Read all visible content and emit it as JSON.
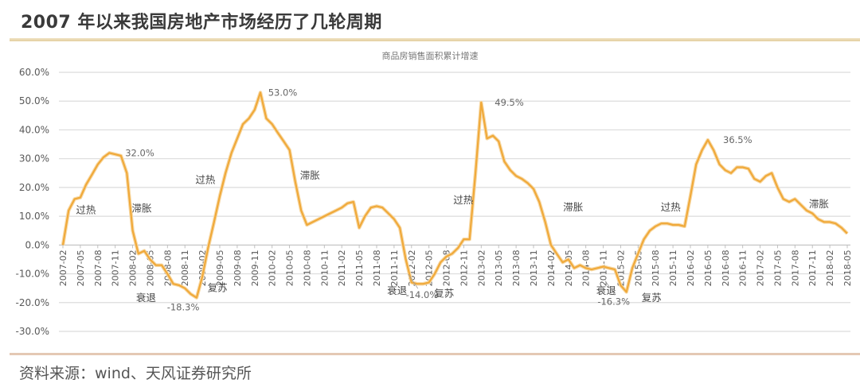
{
  "header": {
    "title": "2007 年以来我国房地产市场经历了几轮周期"
  },
  "footer": {
    "source": "资料来源：wind、天风证券研究所"
  },
  "colors": {
    "line": "#f0a93a",
    "grid": "#dcdcdc",
    "text": "#595959",
    "axis": "#bfbfbf"
  },
  "chart_data": {
    "type": "line",
    "title": "商品房销售面积累计增速",
    "xlabel": "",
    "ylabel": "",
    "ylim": [
      -30,
      60
    ],
    "yticks": [
      60,
      50,
      40,
      30,
      20,
      10,
      0,
      -10,
      -20,
      -30
    ],
    "ytick_labels": [
      "60.0%",
      "50.0%",
      "40.0%",
      "30.0%",
      "20.0%",
      "10.0%",
      "0.0%",
      "-10.0%",
      "-20.0%",
      "-30.0%"
    ],
    "grid": true,
    "legend": "none",
    "categories": [
      "2007-02",
      "2007-05",
      "2007-08",
      "2007-11",
      "2008-02",
      "2008-05",
      "2008-08",
      "2008-11",
      "2009-02",
      "2009-05",
      "2009-08",
      "2009-11",
      "2010-02",
      "2010-05",
      "2010-08",
      "2010-11",
      "2011-02",
      "2011-05",
      "2011-08",
      "2011-11",
      "2012-02",
      "2012-05",
      "2012-08",
      "2012-11",
      "2013-02",
      "2013-05",
      "2013-08",
      "2013-11",
      "2014-02",
      "2014-05",
      "2014-08",
      "2014-11",
      "2015-02",
      "2015-05",
      "2015-08",
      "2015-11",
      "2016-02",
      "2016-05",
      "2016-08",
      "2016-11",
      "2017-02",
      "2017-05",
      "2017-08",
      "2017-11",
      "2018-02",
      "2018-05"
    ],
    "series": [
      {
        "name": "商品房销售面积累计增速",
        "x_index": [
          0,
          0.33,
          0.67,
          1,
          1.33,
          1.67,
          2,
          2.33,
          2.67,
          3,
          3.33,
          3.67,
          4,
          4.33,
          4.67,
          5,
          5.33,
          5.67,
          6,
          6.33,
          6.67,
          7,
          7.33,
          7.67,
          8,
          8.33,
          8.67,
          9,
          9.33,
          9.67,
          10,
          10.33,
          10.67,
          11,
          11.33,
          11.67,
          12,
          12.33,
          12.67,
          13,
          13.33,
          13.67,
          14,
          14.33,
          14.67,
          15,
          15.33,
          15.67,
          16,
          16.33,
          16.67,
          17,
          17.33,
          17.67,
          18,
          18.33,
          18.67,
          19,
          19.33,
          19.67,
          20,
          20.33,
          20.67,
          21,
          21.33,
          21.67,
          22,
          22.33,
          22.67,
          23,
          23.33,
          23.67,
          24,
          24.33,
          24.67,
          25,
          25.33,
          25.67,
          26,
          26.33,
          26.67,
          27,
          27.33,
          27.67,
          28,
          28.33,
          28.67,
          29,
          29.33,
          29.67,
          30,
          30.33,
          30.67,
          31,
          31.33,
          31.67,
          32,
          32.33,
          32.67,
          33,
          33.33,
          33.67,
          34,
          34.33,
          34.67,
          35,
          35.33,
          35.67,
          36,
          36.33,
          36.67,
          37,
          37.33,
          37.67,
          38,
          38.33,
          38.67,
          39,
          39.33,
          39.67,
          40,
          40.33,
          40.67,
          41,
          41.33,
          41.67,
          42,
          42.33,
          42.67,
          43,
          43.33,
          43.67,
          44,
          44.33,
          44.67,
          45
        ],
        "values": [
          0,
          12,
          16,
          16.5,
          21,
          24.5,
          28,
          30.5,
          32,
          31.5,
          31,
          25,
          5,
          -3,
          -2,
          -5,
          -7,
          -7,
          -10,
          -13.5,
          -14,
          -15,
          -17,
          -18.3,
          -11,
          -1,
          8,
          17,
          25,
          32,
          37,
          42,
          44,
          47,
          53,
          44,
          42,
          39,
          36,
          33,
          22,
          12,
          7,
          8,
          9,
          10,
          11,
          12,
          13,
          14.5,
          15,
          6,
          10,
          13,
          13.5,
          13,
          11,
          9,
          6,
          -5,
          -13,
          -13.5,
          -13.5,
          -13,
          -10,
          -6,
          -4,
          -3,
          -1,
          2,
          2,
          25,
          49.5,
          37,
          38,
          36,
          29,
          26,
          24,
          23,
          21.5,
          19.5,
          15,
          8,
          0,
          -3,
          -6,
          -5,
          -8,
          -7,
          -8,
          -8.5,
          -8,
          -7.5,
          -8,
          -8.5,
          -14,
          -16.3,
          -8,
          -3,
          2,
          5,
          6.5,
          7.5,
          7.5,
          7,
          7,
          6.5,
          17,
          28,
          33,
          36.5,
          33,
          28,
          26,
          25,
          27,
          27,
          26.5,
          23,
          22,
          24,
          25,
          20,
          16,
          15,
          16,
          14,
          12,
          11,
          9,
          8,
          8,
          7.5,
          6,
          4,
          3.5,
          1.5,
          3,
          3.2
        ]
      }
    ],
    "annotations": [
      {
        "text": "32.0%",
        "x_index": 3.3,
        "value": 32
      },
      {
        "text": "53.0%",
        "x_index": 11.5,
        "value": 53
      },
      {
        "text": "49.5%",
        "x_index": 24.5,
        "value": 49.5
      },
      {
        "text": "36.5%",
        "x_index": 37.6,
        "value": 36.5
      },
      {
        "text": "-18.3%",
        "x_index": 6.9,
        "value": -18.3
      },
      {
        "text": "-14.0%",
        "x_index": 20.6,
        "value": -14
      },
      {
        "text": "-16.3%",
        "x_index": 31.6,
        "value": -16.3
      },
      {
        "text": "过热",
        "x_index": 0.75,
        "value": 11
      },
      {
        "text": "滞胀",
        "x_index": 3.95,
        "value": 11.5
      },
      {
        "text": "衰退",
        "x_index": 4.2,
        "value": -19.5
      },
      {
        "text": "复苏",
        "x_index": 8.3,
        "value": -16
      },
      {
        "text": "过热",
        "x_index": 7.6,
        "value": 21.5
      },
      {
        "text": "滞胀",
        "x_index": 13.6,
        "value": 23
      },
      {
        "text": "衰退",
        "x_index": 18.6,
        "value": -17
      },
      {
        "text": "复苏",
        "x_index": 21.3,
        "value": -18
      },
      {
        "text": "过热",
        "x_index": 22.4,
        "value": 14.5
      },
      {
        "text": "滞胀",
        "x_index": 28.7,
        "value": 12
      },
      {
        "text": "衰退",
        "x_index": 30.6,
        "value": -17
      },
      {
        "text": "复苏",
        "x_index": 33.2,
        "value": -19.5
      },
      {
        "text": "过热",
        "x_index": 34.3,
        "value": 12
      },
      {
        "text": "滞胀",
        "x_index": 42.8,
        "value": 13
      }
    ]
  }
}
